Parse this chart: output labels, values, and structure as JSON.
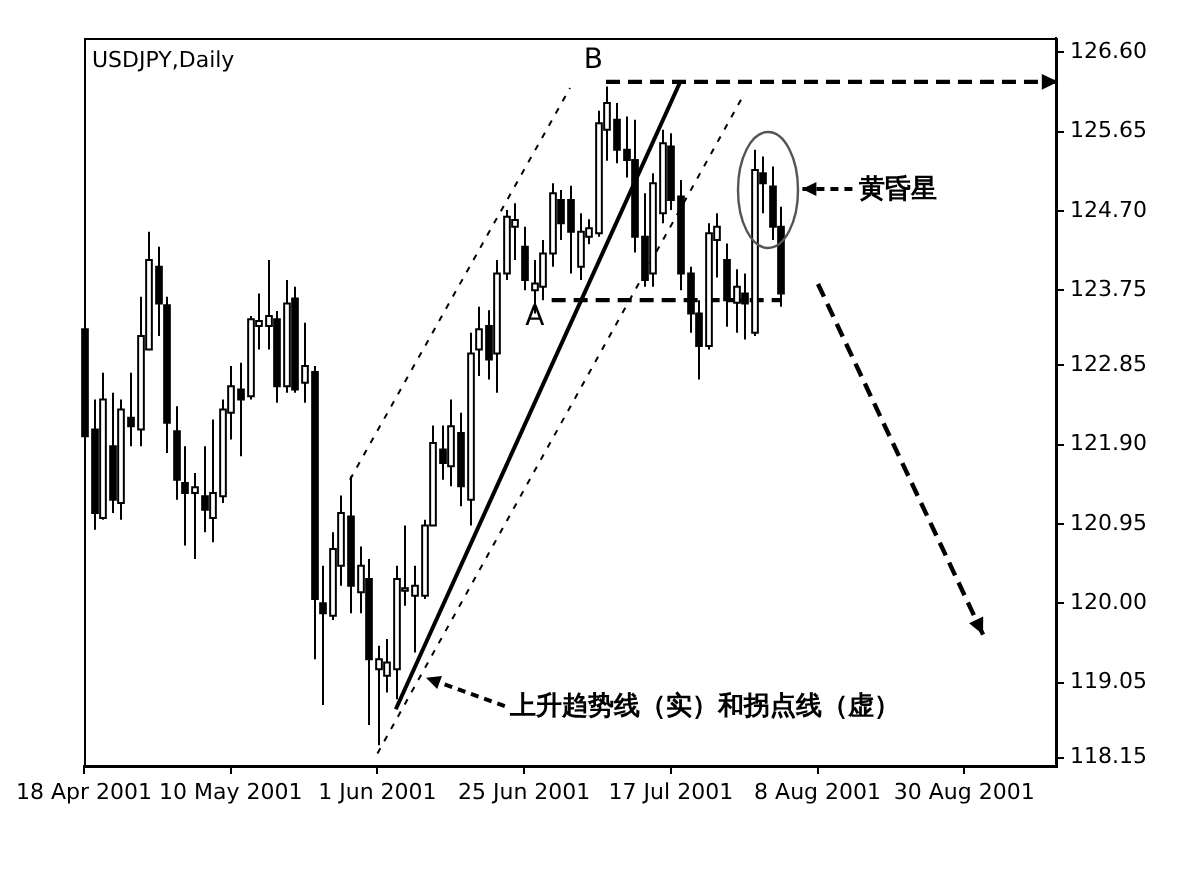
{
  "chart_data": {
    "type": "candlestick",
    "title": "USDJPY,Daily",
    "categories": [
      "18 Apr 2001",
      null,
      null,
      null,
      null,
      null,
      null,
      null,
      null,
      null,
      null,
      null,
      null,
      null,
      null,
      null,
      "10 May 2001",
      null,
      null,
      null,
      null,
      null,
      null,
      null,
      null,
      null,
      null,
      null,
      null,
      null,
      null,
      null,
      "1 Jun 2001",
      null,
      null,
      null,
      null,
      null,
      null,
      null,
      null,
      null,
      null,
      null,
      null,
      null,
      null,
      null,
      "25 Jun 2001",
      null,
      null,
      null,
      null,
      null,
      null,
      null,
      null,
      null,
      null,
      null,
      null,
      null,
      null,
      null,
      "17 Jul 2001",
      null,
      null,
      null,
      null,
      null,
      null,
      null,
      null,
      null,
      null,
      null,
      null,
      null,
      null,
      null,
      "8 Aug 2001",
      null,
      null,
      null,
      null,
      null,
      null,
      null,
      null,
      null,
      null,
      null,
      null,
      null,
      null,
      null,
      "30 Aug 2001",
      null,
      null,
      null,
      null,
      null,
      null,
      null,
      null,
      null,
      null
    ],
    "ohlc": [
      [
        123.28,
        123.67,
        121.96,
        122.0
      ],
      [
        122.08,
        122.44,
        120.88,
        121.08
      ],
      [
        121.02,
        122.76,
        121.0,
        122.44
      ],
      [
        121.88,
        122.52,
        121.08,
        121.24
      ],
      [
        121.2,
        122.44,
        121.0,
        122.32
      ],
      [
        122.22,
        122.76,
        121.88,
        122.12
      ],
      [
        122.08,
        123.67,
        121.88,
        123.2
      ],
      [
        123.04,
        124.45,
        123.04,
        124.11
      ],
      [
        124.03,
        124.27,
        123.2,
        123.59
      ],
      [
        123.57,
        123.67,
        121.8,
        122.16
      ],
      [
        122.06,
        122.36,
        121.24,
        121.48
      ],
      [
        121.44,
        121.88,
        120.69,
        121.32
      ],
      [
        121.32,
        121.56,
        120.53,
        121.39
      ],
      [
        121.28,
        121.88,
        120.85,
        121.12
      ],
      [
        121.02,
        122.2,
        120.73,
        121.32
      ],
      [
        121.28,
        122.44,
        121.2,
        122.32
      ],
      [
        122.28,
        122.84,
        121.96,
        122.6
      ],
      [
        122.56,
        122.88,
        121.76,
        122.44
      ],
      [
        122.48,
        123.44,
        122.44,
        123.4
      ],
      [
        123.32,
        123.71,
        123.04,
        123.38
      ],
      [
        123.32,
        124.11,
        123.04,
        123.44
      ],
      [
        123.4,
        123.5,
        122.4,
        122.6
      ],
      [
        122.6,
        123.87,
        122.52,
        123.59
      ],
      [
        123.65,
        123.79,
        122.52,
        122.56
      ],
      [
        122.64,
        123.36,
        122.4,
        122.84
      ],
      [
        122.77,
        122.84,
        119.33,
        120.05
      ],
      [
        120.0,
        120.45,
        118.78,
        119.88
      ],
      [
        119.85,
        120.85,
        119.8,
        120.65
      ],
      [
        120.45,
        121.29,
        120.21,
        121.08
      ],
      [
        121.04,
        121.52,
        119.88,
        120.21
      ],
      [
        120.13,
        120.68,
        119.88,
        120.45
      ],
      [
        120.29,
        120.53,
        118.54,
        119.33
      ],
      [
        119.21,
        119.49,
        118.3,
        119.33
      ],
      [
        119.13,
        119.57,
        118.93,
        119.29
      ],
      [
        119.21,
        120.45,
        118.85,
        120.29
      ],
      [
        120.15,
        120.93,
        119.97,
        120.18
      ],
      [
        120.09,
        120.45,
        119.41,
        120.21
      ],
      [
        120.09,
        121.0,
        120.05,
        120.93
      ],
      [
        120.93,
        122.13,
        120.93,
        121.92
      ],
      [
        121.84,
        122.13,
        121.48,
        121.68
      ],
      [
        121.64,
        122.44,
        121.4,
        122.12
      ],
      [
        122.04,
        122.28,
        121.16,
        121.4
      ],
      [
        121.24,
        123.24,
        120.93,
        122.99
      ],
      [
        123.04,
        123.55,
        122.72,
        123.28
      ],
      [
        123.32,
        123.51,
        122.68,
        122.92
      ],
      [
        122.99,
        124.11,
        122.52,
        123.95
      ],
      [
        123.95,
        124.71,
        123.87,
        124.63
      ],
      [
        124.51,
        124.79,
        124.11,
        124.59
      ],
      [
        124.27,
        124.51,
        123.75,
        123.87
      ],
      [
        123.75,
        124.11,
        123.47,
        123.83
      ],
      [
        123.79,
        124.35,
        123.63,
        124.19
      ],
      [
        124.19,
        125.03,
        124.03,
        124.91
      ],
      [
        124.83,
        124.95,
        124.35,
        124.55
      ],
      [
        124.83,
        125.0,
        123.95,
        124.45
      ],
      [
        124.03,
        124.67,
        123.87,
        124.45
      ],
      [
        124.39,
        124.6,
        124.3,
        124.49
      ],
      [
        124.43,
        125.9,
        124.39,
        125.75
      ],
      [
        125.67,
        126.19,
        125.3,
        125.99
      ],
      [
        125.79,
        125.99,
        125.27,
        125.43
      ],
      [
        125.43,
        125.83,
        125.1,
        125.31
      ],
      [
        125.31,
        125.79,
        124.2,
        124.39
      ],
      [
        124.39,
        124.91,
        123.79,
        123.87
      ],
      [
        123.95,
        125.15,
        123.79,
        125.03
      ],
      [
        124.67,
        125.67,
        124.55,
        125.51
      ],
      [
        125.47,
        125.63,
        124.71,
        124.83
      ],
      [
        124.87,
        125.07,
        123.75,
        123.95
      ],
      [
        123.95,
        124.03,
        123.24,
        123.47
      ],
      [
        123.47,
        123.63,
        122.68,
        123.08
      ],
      [
        123.08,
        124.55,
        123.04,
        124.43
      ],
      [
        124.35,
        124.67,
        123.9,
        124.51
      ],
      [
        124.11,
        124.31,
        123.31,
        123.63
      ],
      [
        123.6,
        124.0,
        123.24,
        123.79
      ],
      [
        123.71,
        123.95,
        123.16,
        123.59
      ],
      [
        123.24,
        125.43,
        123.2,
        125.19
      ],
      [
        125.15,
        125.35,
        124.67,
        125.03
      ],
      [
        124.99,
        125.23,
        124.35,
        124.51
      ],
      [
        124.51,
        124.75,
        123.55,
        123.71
      ],
      null,
      null,
      null,
      null,
      null,
      null,
      null,
      null,
      null,
      null,
      null,
      null,
      null,
      null,
      null,
      null,
      null,
      null,
      null,
      null,
      null,
      null,
      null,
      null,
      null,
      null,
      null,
      null,
      null,
      null
    ],
    "series": [
      {
        "type": "line",
        "color": "#000000",
        "line_style": "solid",
        "values": [
          null,
          null,
          null,
          null,
          null,
          null,
          null,
          null,
          null,
          null,
          null,
          null,
          null,
          null,
          null,
          null,
          null,
          null,
          null,
          null,
          null,
          null,
          null,
          null,
          null,
          null,
          null,
          null,
          null,
          null,
          null,
          null,
          null,
          null,
          118.73,
          null,
          null,
          null,
          null,
          null,
          null,
          null,
          null,
          null,
          null,
          null,
          null,
          null,
          null,
          null,
          null,
          null,
          null,
          null,
          null,
          null,
          null,
          null,
          null,
          null,
          null,
          null,
          null,
          null,
          null,
          126.24,
          null,
          null,
          null,
          null,
          null,
          null,
          null,
          null,
          null,
          null,
          null,
          null,
          null,
          null,
          null,
          null,
          null,
          null,
          null,
          null,
          null,
          null,
          null,
          null,
          null,
          null,
          null,
          null,
          null,
          null,
          null,
          null,
          null,
          null,
          null,
          null,
          null,
          null,
          null,
          null,
          null
        ]
      },
      {
        "type": "line",
        "color": "#000000",
        "line_style": "dashed",
        "values": [
          null,
          null,
          null,
          null,
          null,
          null,
          null,
          null,
          null,
          null,
          null,
          null,
          null,
          null,
          null,
          null,
          null,
          null,
          null,
          null,
          null,
          null,
          null,
          null,
          null,
          null,
          null,
          null,
          null,
          121.48,
          null,
          null,
          null,
          null,
          null,
          null,
          null,
          null,
          null,
          null,
          null,
          null,
          null,
          null,
          null,
          null,
          null,
          null,
          null,
          null,
          null,
          null,
          null,
          126.17,
          null,
          null,
          null,
          null,
          null,
          null,
          null,
          null,
          null,
          null,
          null,
          null,
          null,
          null,
          null,
          null,
          null,
          null,
          null,
          null,
          null,
          null,
          null,
          null,
          null,
          null,
          null,
          null,
          null,
          null,
          null,
          null,
          null,
          null,
          null,
          null,
          null,
          null,
          null,
          null,
          null,
          null,
          null,
          null,
          null,
          null,
          null,
          null,
          null,
          null,
          null,
          null,
          null
        ]
      },
      {
        "type": "line",
        "color": "#000000",
        "line_style": "dashed",
        "values": [
          null,
          null,
          null,
          null,
          null,
          null,
          null,
          null,
          null,
          null,
          null,
          null,
          null,
          null,
          null,
          null,
          null,
          null,
          null,
          null,
          null,
          null,
          null,
          null,
          null,
          null,
          null,
          null,
          null,
          null,
          null,
          null,
          118.2,
          null,
          null,
          null,
          null,
          null,
          null,
          null,
          null,
          null,
          null,
          null,
          null,
          null,
          null,
          null,
          null,
          null,
          null,
          null,
          null,
          null,
          null,
          null,
          null,
          null,
          null,
          null,
          null,
          null,
          null,
          null,
          null,
          null,
          null,
          null,
          null,
          null,
          null,
          null,
          126.1,
          null,
          null,
          null,
          null,
          null,
          null,
          null,
          null,
          null,
          null,
          null,
          null,
          null,
          null,
          null,
          null,
          null,
          null,
          null,
          null,
          null,
          null,
          null,
          null,
          null,
          null,
          null,
          null,
          null,
          null,
          null,
          null,
          null,
          null
        ]
      },
      {
        "type": "line",
        "color": "#000000",
        "line_style": "dashed",
        "values": [
          null,
          null,
          null,
          null,
          null,
          null,
          null,
          null,
          null,
          null,
          null,
          null,
          null,
          null,
          null,
          null,
          null,
          null,
          null,
          null,
          null,
          null,
          null,
          null,
          null,
          null,
          null,
          null,
          null,
          null,
          null,
          null,
          null,
          null,
          null,
          null,
          null,
          null,
          null,
          null,
          null,
          null,
          null,
          null,
          null,
          null,
          null,
          null,
          null,
          null,
          null,
          123.63,
          null,
          null,
          null,
          null,
          null,
          null,
          null,
          null,
          null,
          null,
          null,
          null,
          null,
          null,
          null,
          null,
          null,
          null,
          null,
          null,
          null,
          null,
          null,
          null,
          123.63,
          null,
          null,
          null,
          null,
          null,
          null,
          null,
          null,
          null,
          null,
          null,
          null,
          null,
          null,
          null,
          null,
          null,
          null,
          null,
          null,
          null,
          null,
          null,
          null,
          null,
          null,
          null,
          null,
          null,
          null
        ]
      }
    ],
    "ylim": [
      118.05,
      126.77
    ],
    "yticks": [
      {
        "value": 126.6,
        "label": "126.60"
      },
      125.65,
      {
        "value": 124.7,
        "label": "124.70"
      },
      123.75,
      122.85,
      {
        "value": 121.9,
        "label": "121.90"
      },
      120.95,
      {
        "value": 120.0,
        "label": "120.00"
      },
      119.05,
      118.15
    ],
    "annotations": [
      "A",
      "B",
      "黄昏星",
      "上升趋势线（实）和拐点线（虚）"
    ],
    "grid": false,
    "legend": false
  }
}
